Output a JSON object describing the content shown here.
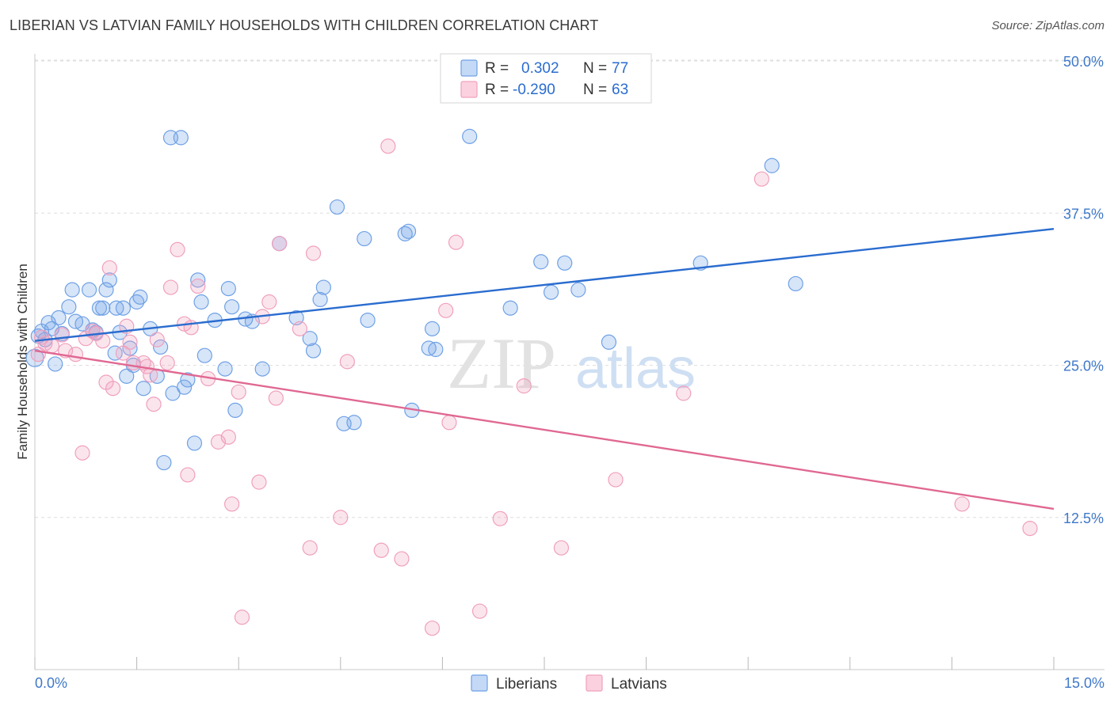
{
  "header": {
    "title": "LIBERIAN VS LATVIAN FAMILY HOUSEHOLDS WITH CHILDREN CORRELATION CHART",
    "source": "Source: ZipAtlas.com"
  },
  "watermark": {
    "zip": "ZIP",
    "atlas": "atlas"
  },
  "legend_top": [
    {
      "r_label": "R =",
      "r_value": "0.302",
      "n_label": "N =",
      "n_value": "77",
      "color": "#6fa1e6"
    },
    {
      "r_label": "R =",
      "r_value": "-0.290",
      "n_label": "N =",
      "n_value": "63",
      "color": "#f0a0bd"
    }
  ],
  "legend_bottom": [
    {
      "label": "Liberians",
      "color": "#6fa1e6"
    },
    {
      "label": "Latvians",
      "color": "#f0a0bd"
    }
  ],
  "chart_data": {
    "type": "scatter",
    "title": "LIBERIAN VS LATVIAN FAMILY HOUSEHOLDS WITH CHILDREN CORRELATION CHART",
    "xlabel": "",
    "ylabel": "Family Households with Children",
    "xlim": [
      0,
      15
    ],
    "ylim": [
      0,
      50
    ],
    "x_tick_labels": [
      "0.0%",
      "15.0%"
    ],
    "y_ticks": [
      12.5,
      25.0,
      37.5,
      50.0
    ],
    "y_tick_labels": [
      "12.5%",
      "25.0%",
      "37.5%",
      "50.0%"
    ],
    "grid": true,
    "legend_position": "top-center",
    "series": [
      {
        "name": "Liberians",
        "color": "#6fa1e6",
        "line_color": "#2a6ccf",
        "trend": {
          "x": [
            0,
            15
          ],
          "y": [
            27.0,
            36.2
          ]
        },
        "points": [
          [
            0.0,
            25.6
          ],
          [
            0.05,
            27.4
          ],
          [
            0.1,
            27.8
          ],
          [
            0.15,
            27.1
          ],
          [
            0.2,
            28.5
          ],
          [
            0.25,
            28.0
          ],
          [
            0.3,
            25.1
          ],
          [
            0.35,
            28.9
          ],
          [
            0.4,
            27.6
          ],
          [
            0.5,
            29.8
          ],
          [
            0.55,
            31.2
          ],
          [
            0.6,
            28.6
          ],
          [
            0.7,
            28.4
          ],
          [
            0.8,
            31.2
          ],
          [
            0.85,
            27.9
          ],
          [
            0.9,
            27.7
          ],
          [
            0.95,
            29.7
          ],
          [
            1.0,
            29.7
          ],
          [
            1.05,
            31.2
          ],
          [
            1.1,
            32.0
          ],
          [
            1.18,
            26.0
          ],
          [
            1.2,
            29.7
          ],
          [
            1.25,
            27.7
          ],
          [
            1.3,
            29.7
          ],
          [
            1.35,
            24.1
          ],
          [
            1.4,
            26.4
          ],
          [
            1.45,
            25.0
          ],
          [
            1.5,
            30.2
          ],
          [
            1.55,
            30.6
          ],
          [
            1.6,
            23.1
          ],
          [
            1.7,
            28.0
          ],
          [
            1.8,
            24.1
          ],
          [
            1.85,
            26.5
          ],
          [
            1.9,
            17.0
          ],
          [
            2.0,
            43.7
          ],
          [
            2.03,
            22.7
          ],
          [
            2.15,
            43.7
          ],
          [
            2.2,
            23.2
          ],
          [
            2.25,
            23.8
          ],
          [
            2.35,
            18.6
          ],
          [
            2.4,
            32.0
          ],
          [
            2.45,
            30.2
          ],
          [
            2.5,
            25.8
          ],
          [
            2.65,
            28.7
          ],
          [
            2.8,
            24.7
          ],
          [
            2.85,
            31.3
          ],
          [
            2.9,
            29.8
          ],
          [
            2.95,
            21.3
          ],
          [
            3.1,
            28.8
          ],
          [
            3.2,
            28.6
          ],
          [
            3.35,
            24.7
          ],
          [
            3.6,
            35.0
          ],
          [
            3.85,
            28.9
          ],
          [
            4.05,
            27.2
          ],
          [
            4.1,
            26.2
          ],
          [
            4.2,
            30.4
          ],
          [
            4.25,
            31.4
          ],
          [
            4.45,
            38.0
          ],
          [
            4.55,
            20.2
          ],
          [
            4.7,
            20.3
          ],
          [
            4.85,
            35.4
          ],
          [
            4.9,
            28.7
          ],
          [
            5.45,
            35.8
          ],
          [
            5.5,
            36.0
          ],
          [
            5.55,
            21.3
          ],
          [
            5.8,
            26.4
          ],
          [
            5.85,
            28.0
          ],
          [
            5.9,
            26.3
          ],
          [
            6.4,
            43.8
          ],
          [
            7.0,
            29.7
          ],
          [
            7.45,
            33.5
          ],
          [
            7.6,
            31.0
          ],
          [
            7.8,
            33.4
          ],
          [
            8.0,
            31.2
          ],
          [
            8.45,
            26.9
          ],
          [
            9.8,
            33.4
          ],
          [
            10.85,
            41.4
          ],
          [
            11.2,
            31.7
          ]
        ]
      },
      {
        "name": "Latvians",
        "color": "#f0a0bd",
        "line_color": "#e06892",
        "trend": {
          "x": [
            0,
            15
          ],
          "y": [
            26.2,
            13.2
          ]
        },
        "points": [
          [
            0.05,
            25.9
          ],
          [
            0.1,
            27.3
          ],
          [
            0.15,
            26.8
          ],
          [
            0.25,
            26.6
          ],
          [
            0.4,
            27.5
          ],
          [
            0.45,
            26.2
          ],
          [
            0.6,
            25.9
          ],
          [
            0.7,
            17.8
          ],
          [
            0.75,
            27.2
          ],
          [
            0.85,
            27.8
          ],
          [
            0.9,
            27.6
          ],
          [
            1.0,
            27.0
          ],
          [
            1.05,
            23.6
          ],
          [
            1.1,
            33.0
          ],
          [
            1.15,
            23.1
          ],
          [
            1.3,
            26.0
          ],
          [
            1.35,
            28.2
          ],
          [
            1.4,
            26.9
          ],
          [
            1.45,
            25.2
          ],
          [
            1.6,
            25.2
          ],
          [
            1.65,
            24.9
          ],
          [
            1.7,
            24.2
          ],
          [
            1.75,
            21.8
          ],
          [
            1.8,
            27.1
          ],
          [
            1.95,
            25.2
          ],
          [
            2.0,
            31.4
          ],
          [
            2.1,
            34.5
          ],
          [
            2.2,
            28.4
          ],
          [
            2.25,
            16.0
          ],
          [
            2.3,
            28.1
          ],
          [
            2.4,
            31.5
          ],
          [
            2.55,
            23.9
          ],
          [
            2.7,
            18.7
          ],
          [
            2.85,
            19.1
          ],
          [
            2.9,
            13.6
          ],
          [
            3.0,
            22.8
          ],
          [
            3.05,
            4.3
          ],
          [
            3.3,
            15.4
          ],
          [
            3.35,
            29.0
          ],
          [
            3.45,
            30.2
          ],
          [
            3.55,
            22.3
          ],
          [
            3.6,
            35.0
          ],
          [
            3.9,
            28.0
          ],
          [
            4.05,
            10.0
          ],
          [
            4.1,
            34.2
          ],
          [
            4.5,
            12.5
          ],
          [
            4.6,
            25.3
          ],
          [
            5.1,
            9.8
          ],
          [
            5.2,
            43.0
          ],
          [
            5.4,
            9.1
          ],
          [
            5.85,
            3.4
          ],
          [
            6.05,
            29.5
          ],
          [
            6.1,
            20.3
          ],
          [
            6.2,
            35.1
          ],
          [
            6.55,
            4.8
          ],
          [
            6.85,
            12.4
          ],
          [
            7.2,
            23.3
          ],
          [
            7.75,
            10.0
          ],
          [
            8.55,
            15.6
          ],
          [
            9.55,
            22.7
          ],
          [
            10.7,
            40.3
          ],
          [
            13.65,
            13.6
          ],
          [
            14.65,
            11.6
          ]
        ]
      }
    ]
  }
}
